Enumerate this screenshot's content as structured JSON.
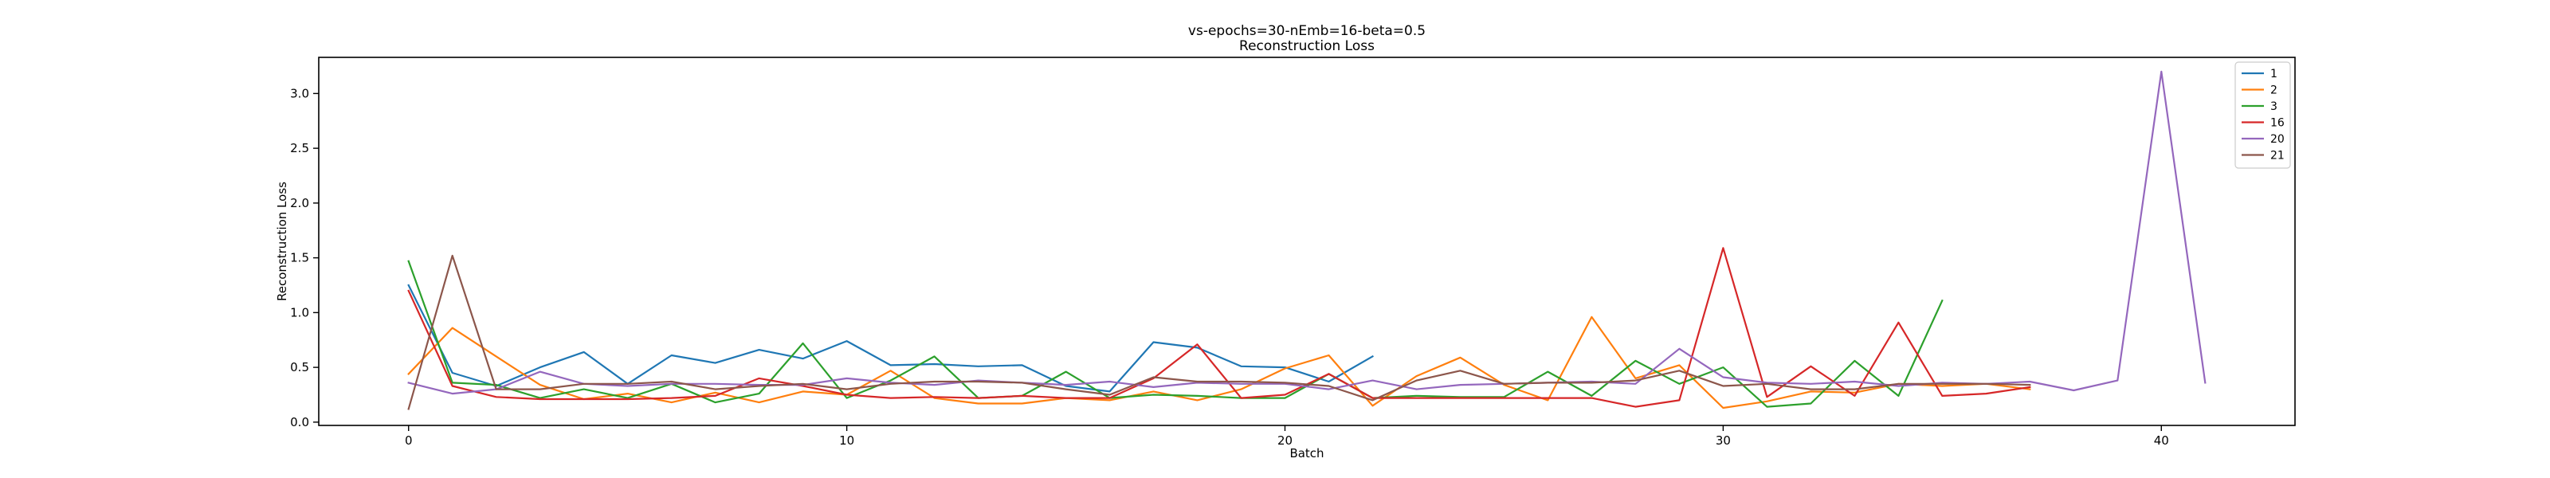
{
  "chart_data": {
    "type": "line",
    "title": "vs-epochs=30-nEmb=16-beta=0.5",
    "subtitle": "Reconstruction Loss",
    "xlabel": "Batch",
    "ylabel": "Reconstruction Loss",
    "xlim": [
      -2.05,
      43.05
    ],
    "ylim": [
      -0.03,
      3.33
    ],
    "xticks": [
      0,
      10,
      20,
      30,
      40
    ],
    "yticks": [
      0.0,
      0.5,
      1.0,
      1.5,
      2.0,
      2.5,
      3.0
    ],
    "grid": false,
    "legend_position": "top-right",
    "series": [
      {
        "name": "1",
        "color": "#1f77b4",
        "x": [
          0,
          1,
          2,
          3,
          4,
          5,
          6,
          7,
          8,
          9,
          10,
          11,
          12,
          13,
          14,
          15,
          16,
          17,
          18,
          19,
          20,
          21,
          22
        ],
        "y": [
          1.25,
          0.45,
          0.33,
          0.5,
          0.64,
          0.35,
          0.61,
          0.54,
          0.66,
          0.58,
          0.74,
          0.52,
          0.53,
          0.51,
          0.52,
          0.33,
          0.28,
          0.73,
          0.68,
          0.51,
          0.5,
          0.37,
          0.6
        ]
      },
      {
        "name": "2",
        "color": "#ff7f0e",
        "x": [
          0,
          1,
          2,
          3,
          4,
          5,
          6,
          7,
          8,
          9,
          10,
          11,
          12,
          13,
          14,
          15,
          16,
          17,
          18,
          19,
          20,
          21,
          22,
          23,
          24,
          25,
          26,
          27,
          28,
          29,
          30,
          31,
          32,
          33,
          34,
          35,
          36,
          37
        ],
        "y": [
          0.44,
          0.86,
          0.6,
          0.34,
          0.21,
          0.26,
          0.18,
          0.27,
          0.18,
          0.28,
          0.25,
          0.47,
          0.22,
          0.17,
          0.17,
          0.22,
          0.2,
          0.28,
          0.2,
          0.3,
          0.49,
          0.61,
          0.15,
          0.42,
          0.59,
          0.34,
          0.2,
          0.96,
          0.4,
          0.52,
          0.13,
          0.19,
          0.28,
          0.27,
          0.35,
          0.33,
          0.35,
          0.3
        ]
      },
      {
        "name": "3",
        "color": "#2ca02c",
        "x": [
          0,
          1,
          2,
          3,
          4,
          5,
          6,
          7,
          8,
          9,
          10,
          11,
          12,
          13,
          14,
          15,
          16,
          17,
          18,
          19,
          20,
          21,
          22,
          23,
          24,
          25,
          26,
          27,
          28,
          29,
          30,
          31,
          32,
          33,
          34,
          35
        ],
        "y": [
          1.47,
          0.36,
          0.34,
          0.22,
          0.3,
          0.22,
          0.35,
          0.18,
          0.26,
          0.72,
          0.22,
          0.38,
          0.6,
          0.22,
          0.24,
          0.46,
          0.22,
          0.25,
          0.24,
          0.22,
          0.22,
          0.44,
          0.22,
          0.24,
          0.23,
          0.23,
          0.46,
          0.24,
          0.56,
          0.35,
          0.5,
          0.14,
          0.17,
          0.56,
          0.24,
          1.11
        ]
      },
      {
        "name": "16",
        "color": "#d62728",
        "x": [
          0,
          1,
          2,
          3,
          4,
          5,
          6,
          7,
          8,
          9,
          10,
          11,
          12,
          13,
          14,
          15,
          16,
          17,
          18,
          19,
          20,
          21,
          22,
          23,
          24,
          25,
          26,
          27,
          28,
          29,
          30,
          31,
          32,
          33,
          34,
          35,
          36,
          37
        ],
        "y": [
          1.2,
          0.33,
          0.23,
          0.21,
          0.21,
          0.21,
          0.22,
          0.24,
          0.4,
          0.33,
          0.25,
          0.22,
          0.23,
          0.22,
          0.24,
          0.22,
          0.22,
          0.4,
          0.71,
          0.22,
          0.25,
          0.44,
          0.22,
          0.22,
          0.22,
          0.22,
          0.22,
          0.22,
          0.14,
          0.2,
          1.59,
          0.23,
          0.51,
          0.24,
          0.91,
          0.24,
          0.26,
          0.32
        ]
      },
      {
        "name": "20",
        "color": "#9467bd",
        "x": [
          0,
          1,
          2,
          3,
          4,
          5,
          6,
          7,
          8,
          9,
          10,
          11,
          12,
          13,
          14,
          15,
          16,
          17,
          18,
          19,
          20,
          21,
          22,
          23,
          24,
          25,
          26,
          27,
          28,
          29,
          30,
          31,
          32,
          33,
          34,
          35,
          36,
          37,
          38,
          39,
          40,
          41
        ],
        "y": [
          0.36,
          0.26,
          0.3,
          0.46,
          0.35,
          0.33,
          0.35,
          0.35,
          0.34,
          0.34,
          0.4,
          0.36,
          0.34,
          0.38,
          0.36,
          0.34,
          0.37,
          0.32,
          0.36,
          0.35,
          0.35,
          0.3,
          0.38,
          0.3,
          0.34,
          0.35,
          0.36,
          0.37,
          0.35,
          0.67,
          0.41,
          0.36,
          0.35,
          0.37,
          0.33,
          0.36,
          0.35,
          0.37,
          0.29,
          0.38,
          3.2,
          0.36
        ]
      },
      {
        "name": "21",
        "color": "#8c564b",
        "x": [
          0,
          1,
          2,
          3,
          4,
          5,
          6,
          7,
          8,
          9,
          10,
          11,
          12,
          13,
          14,
          15,
          16,
          17,
          18,
          19,
          20,
          21,
          22,
          23,
          24,
          25,
          26,
          27,
          28,
          29,
          30,
          31,
          32,
          33,
          34,
          35,
          36,
          37
        ],
        "y": [
          0.12,
          1.52,
          0.3,
          0.3,
          0.35,
          0.35,
          0.37,
          0.3,
          0.33,
          0.35,
          0.3,
          0.35,
          0.37,
          0.37,
          0.36,
          0.3,
          0.25,
          0.41,
          0.37,
          0.37,
          0.36,
          0.33,
          0.2,
          0.38,
          0.47,
          0.35,
          0.36,
          0.36,
          0.38,
          0.47,
          0.33,
          0.35,
          0.3,
          0.3,
          0.35,
          0.35,
          0.35,
          0.34
        ]
      }
    ]
  }
}
